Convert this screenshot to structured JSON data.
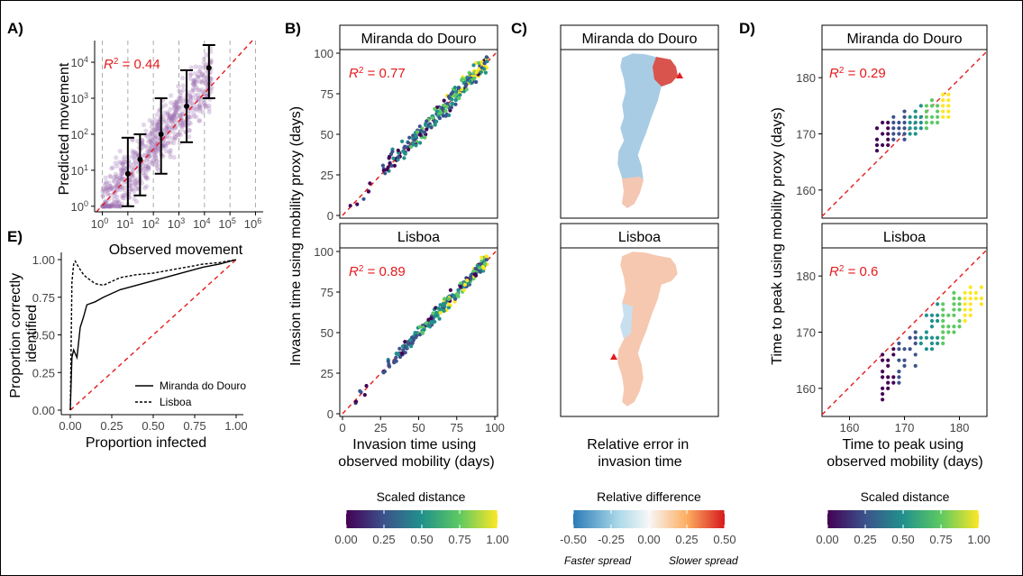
{
  "panels": {
    "A": {
      "label": "A)",
      "xlabel": "Observed movement",
      "ylabel": "Predicted movement",
      "r2_prefix": "R",
      "r2_sup": "2",
      "r2_value": " = 0.44",
      "x_ticks": [
        [
          "10",
          "0"
        ],
        [
          "10",
          "1"
        ],
        [
          "10",
          "2"
        ],
        [
          "10",
          "3"
        ],
        [
          "10",
          "4"
        ],
        [
          "10",
          "5"
        ],
        [
          "10",
          "6"
        ]
      ],
      "y_ticks": [
        [
          "10",
          "0"
        ],
        [
          "10",
          "1"
        ],
        [
          "10",
          "2"
        ],
        [
          "10",
          "3"
        ],
        [
          "10",
          "4"
        ]
      ]
    },
    "E": {
      "label": "E)",
      "xlabel": "Proportion infected",
      "ylabel_line1": "Proportion correctly",
      "ylabel_line2": "identified",
      "x_ticks": [
        "0.00",
        "0.25",
        "0.50",
        "0.75",
        "1.00"
      ],
      "y_ticks": [
        "0.00",
        "0.25",
        "0.50",
        "0.75",
        "1.00"
      ],
      "legend": [
        "Miranda do Douro",
        "Lisboa"
      ]
    },
    "B": {
      "label": "B)",
      "top_title": "Miranda do Douro",
      "bottom_title": "Lisboa",
      "top_r2": " = 0.77",
      "bottom_r2": " = 0.89",
      "ylabel": "Invasion time using mobility proxy (days)",
      "xlabel_line1": "Invasion time using",
      "xlabel_line2": "observed mobility (days)",
      "x_ticks": [
        "0",
        "25",
        "50",
        "75",
        "100"
      ],
      "y_ticks": [
        "0",
        "25",
        "50",
        "75",
        "100"
      ],
      "colorbar_title": "Scaled distance",
      "colorbar_ticks": [
        "0.00",
        "0.25",
        "0.50",
        "0.75",
        "1.00"
      ]
    },
    "C": {
      "label": "C)",
      "top_title": "Miranda do Douro",
      "bottom_title": "Lisboa",
      "xlabel_line1": "Relative error in",
      "xlabel_line2": "invasion time",
      "colorbar_title": "Relative difference",
      "colorbar_ticks": [
        "-0.50",
        "-0.25",
        "0.00",
        "0.25",
        "0.50"
      ],
      "left_note": "Faster spread",
      "right_note": "Slower spread"
    },
    "D": {
      "label": "D)",
      "top_title": "Miranda do Douro",
      "bottom_title": "Lisboa",
      "top_r2": " = 0.29",
      "bottom_r2": " = 0.6",
      "ylabel": "Time to peak using mobility proxy (days)",
      "xlabel_line1": "Time to peak using",
      "xlabel_line2": "observed mobility (days)",
      "x_ticks": [
        "160",
        "170",
        "180"
      ],
      "y_ticks": [
        "160",
        "170",
        "180"
      ],
      "colorbar_title": "Scaled distance",
      "colorbar_ticks": [
        "0.00",
        "0.25",
        "0.50",
        "0.75",
        "1.00"
      ]
    }
  },
  "colors": {
    "reference_line": "#e41a1c",
    "r2_text": "#e41a1c",
    "scatter_A": "#9c6bb0",
    "viridis": [
      "#440154",
      "#3b528b",
      "#21918c",
      "#5ec962",
      "#fde725"
    ],
    "diverging": [
      "#2c7bb6",
      "#abd9e9",
      "#f7f7f7",
      "#fdae61",
      "#d7191c"
    ],
    "marker": "#e41a1c"
  },
  "chart_data": [
    {
      "panel": "A",
      "type": "scatter",
      "xlabel": "Observed movement",
      "ylabel": "Predicted movement",
      "x_scale": "log10",
      "y_scale": "log10",
      "xlim": [
        0.5,
        2000000
      ],
      "ylim": [
        0.7,
        40000
      ],
      "r2": 0.44,
      "binned_summary": {
        "x": [
          10,
          30,
          200,
          2000,
          15000
        ],
        "median": [
          8,
          20,
          100,
          600,
          7000
        ],
        "lower": [
          1,
          2,
          8,
          60,
          1000
        ],
        "upper": [
          80,
          100,
          1000,
          6000,
          30000
        ]
      }
    },
    {
      "panel": "E",
      "type": "line",
      "xlabel": "Proportion infected",
      "ylabel": "Proportion correctly identified",
      "xlim": [
        0,
        1
      ],
      "ylim": [
        0,
        1
      ],
      "series": [
        {
          "name": "Miranda do Douro",
          "x": [
            0,
            0.01,
            0.02,
            0.04,
            0.06,
            0.08,
            0.1,
            0.15,
            0.2,
            0.3,
            0.4,
            0.5,
            0.6,
            0.7,
            0.8,
            0.9,
            1.0
          ],
          "y": [
            0,
            0.35,
            0.4,
            0.35,
            0.55,
            0.62,
            0.7,
            0.72,
            0.75,
            0.8,
            0.83,
            0.86,
            0.89,
            0.92,
            0.95,
            0.97,
            1.0
          ]
        },
        {
          "name": "Lisboa",
          "x": [
            0,
            0.01,
            0.02,
            0.03,
            0.05,
            0.08,
            0.1,
            0.15,
            0.2,
            0.3,
            0.4,
            0.5,
            0.6,
            0.7,
            0.8,
            0.9,
            1.0
          ],
          "y": [
            0,
            0.85,
            0.97,
            0.99,
            0.95,
            0.9,
            0.88,
            0.84,
            0.83,
            0.88,
            0.9,
            0.91,
            0.93,
            0.95,
            0.97,
            0.98,
            1.0
          ]
        }
      ]
    },
    {
      "panel": "B",
      "type": "scatter",
      "facets": [
        "Miranda do Douro",
        "Lisboa"
      ],
      "xlabel": "Invasion time using observed mobility (days)",
      "ylabel": "Invasion time using mobility proxy (days)",
      "xlim": [
        0,
        100
      ],
      "ylim": [
        0,
        100
      ],
      "r2": [
        0.77,
        0.89
      ]
    },
    {
      "panel": "C",
      "type": "heatmap",
      "facets": [
        "Miranda do Douro",
        "Lisboa"
      ],
      "color_label": "Relative difference",
      "color_range": [
        -0.5,
        0.5
      ]
    },
    {
      "panel": "D",
      "type": "scatter",
      "facets": [
        "Miranda do Douro",
        "Lisboa"
      ],
      "xlabel": "Time to peak using observed mobility (days)",
      "ylabel": "Time to peak using mobility proxy (days)",
      "xlim": [
        155,
        185
      ],
      "ylim": [
        155,
        185
      ],
      "r2": [
        0.29,
        0.6
      ]
    }
  ]
}
